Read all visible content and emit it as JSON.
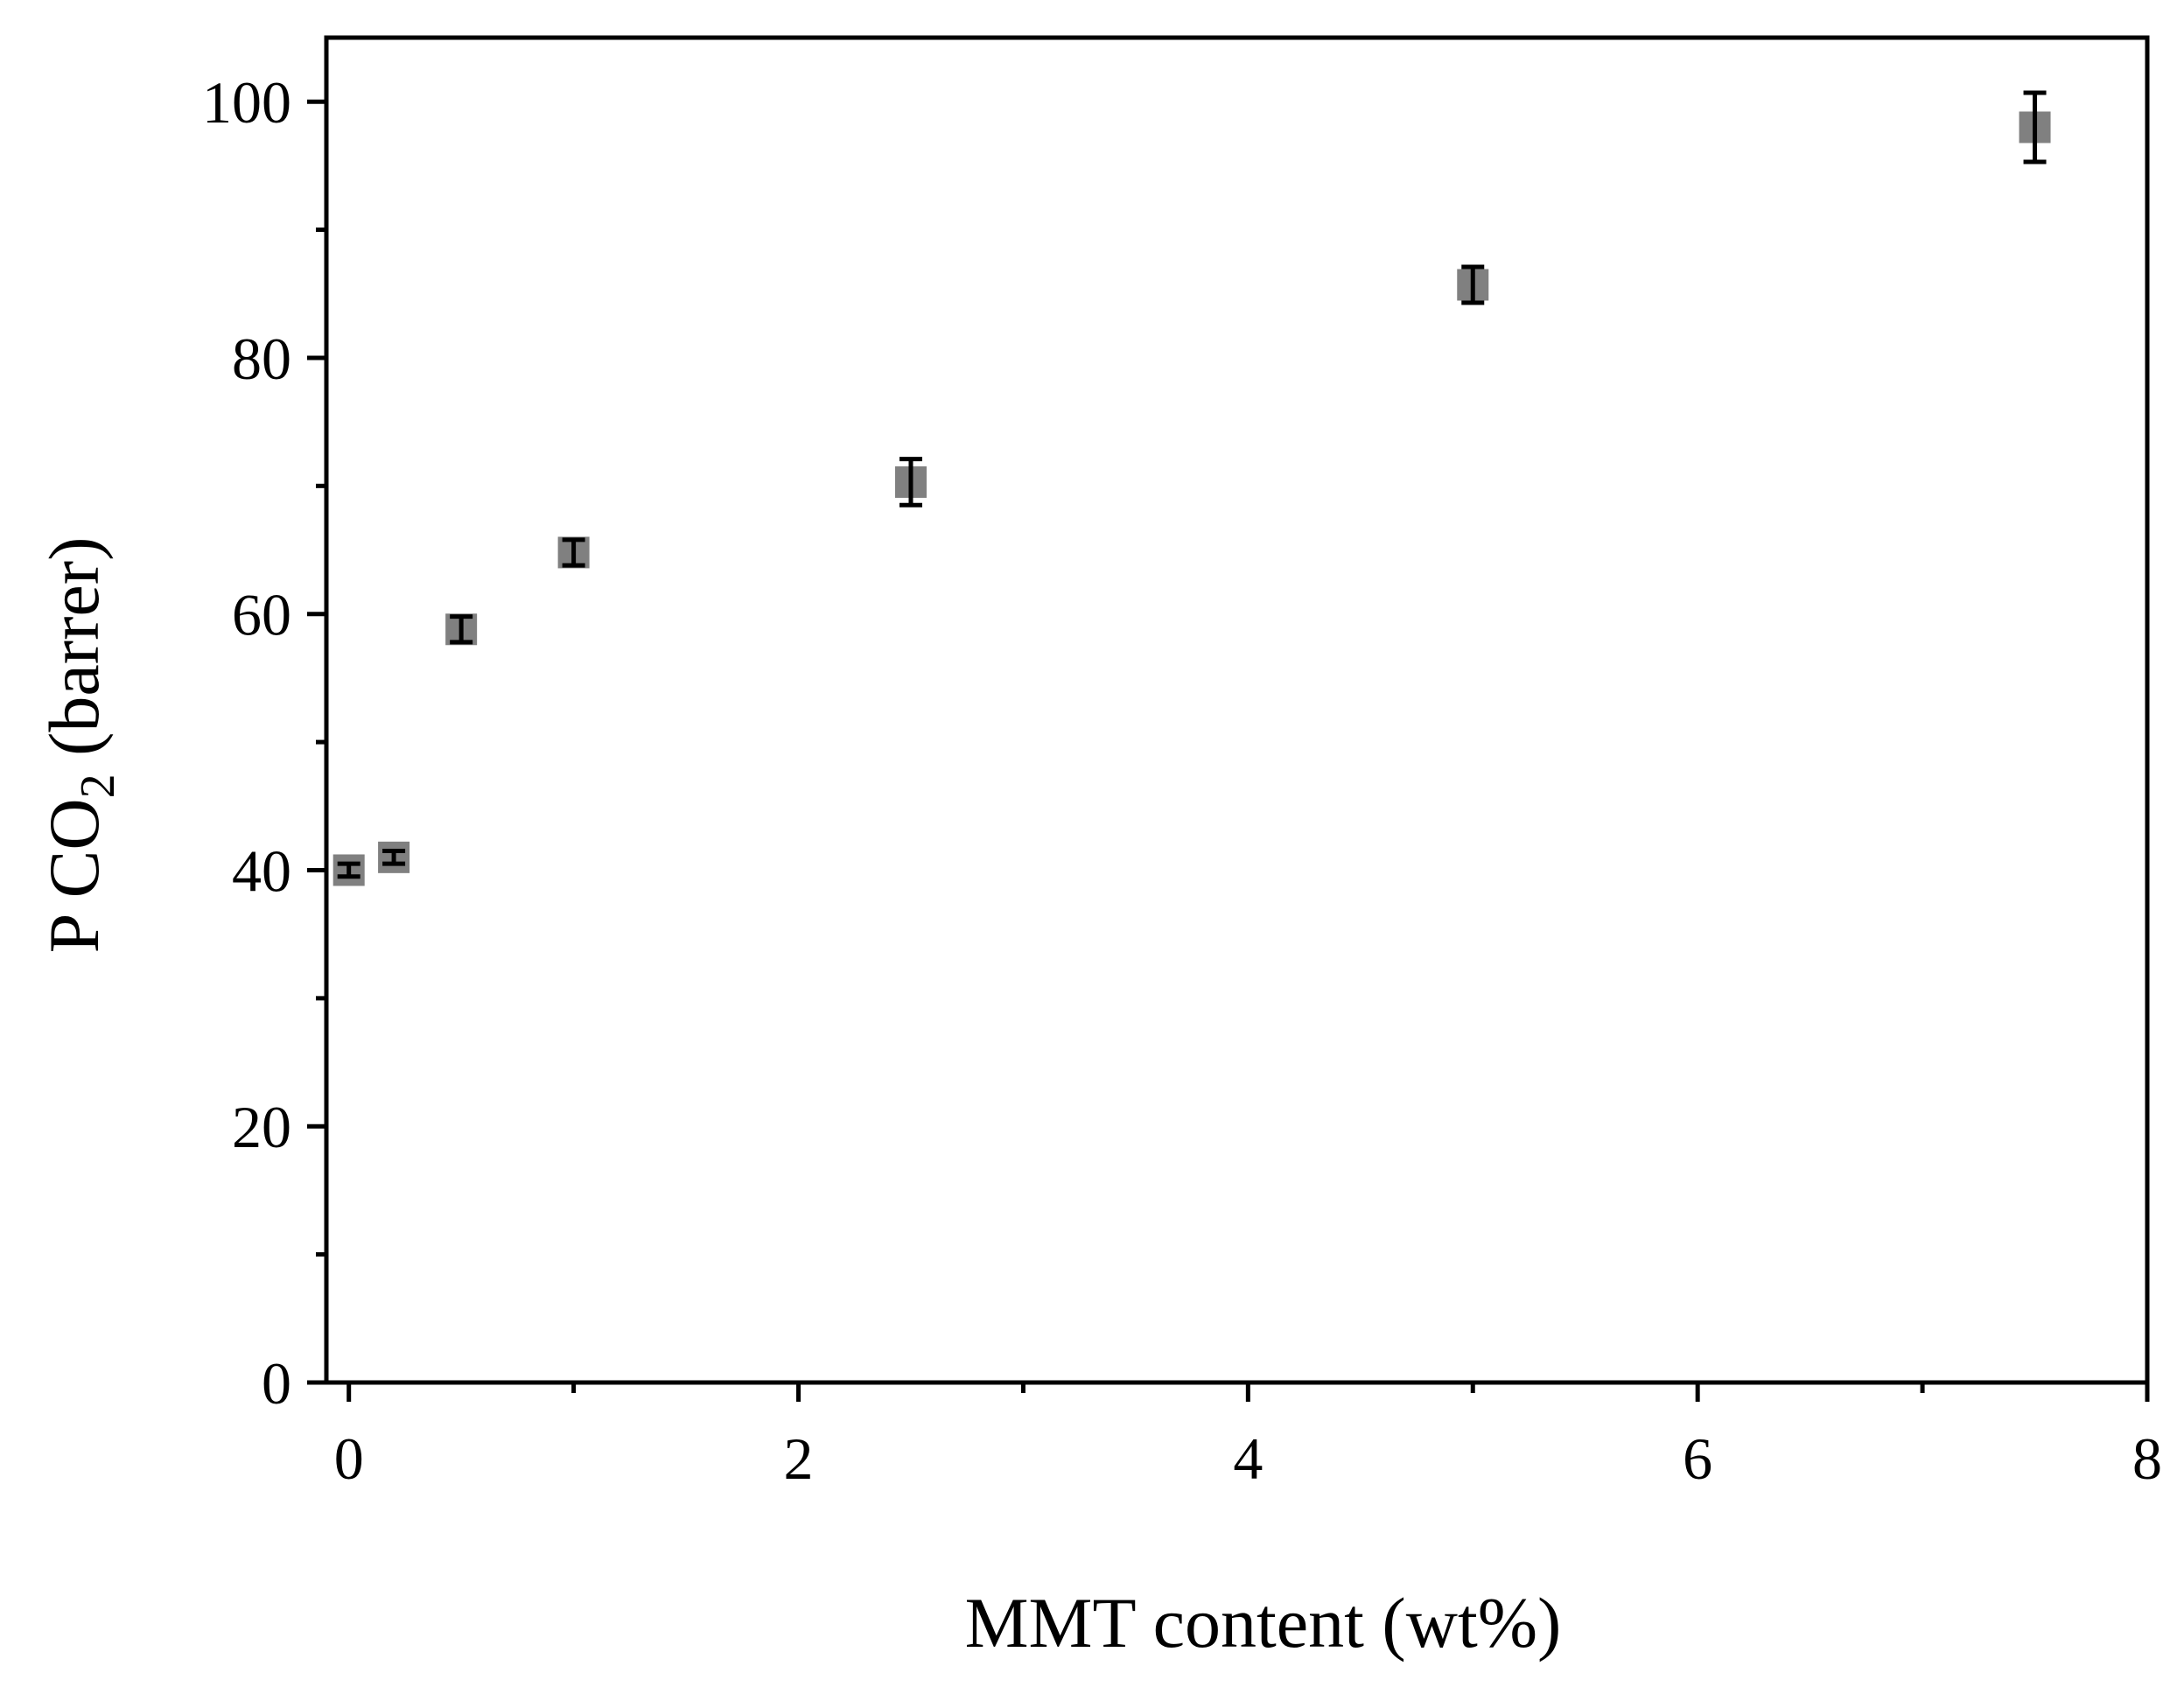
{
  "chart_data": {
    "type": "scatter",
    "title": "",
    "xlabel": "MMT content (wt%)",
    "ylabel": {
      "prefix": "P CO",
      "subscript": "2",
      "suffix": " (barrer)"
    },
    "xlim": [
      -0.1,
      8
    ],
    "ylim": [
      0,
      105
    ],
    "x_ticks": [
      0,
      2,
      4,
      6,
      8
    ],
    "y_ticks": [
      0,
      20,
      40,
      60,
      80,
      100
    ],
    "x_minor_ticks": [
      1,
      3,
      5,
      7
    ],
    "y_minor_ticks": [
      10,
      30,
      50,
      70,
      90
    ],
    "grid": false,
    "legend": false,
    "marker": "square",
    "marker_color": "#808080",
    "error_bar_color": "#000000",
    "points": [
      {
        "x": 0,
        "y": 40.0,
        "err": 0.5
      },
      {
        "x": 0.2,
        "y": 41.0,
        "err": 0.5
      },
      {
        "x": 0.5,
        "y": 58.8,
        "err": 1.0
      },
      {
        "x": 1.0,
        "y": 64.8,
        "err": 1.0
      },
      {
        "x": 2.5,
        "y": 70.3,
        "err": 1.8
      },
      {
        "x": 5.0,
        "y": 85.7,
        "err": 1.4
      },
      {
        "x": 7.5,
        "y": 98.0,
        "err": 2.7
      }
    ]
  }
}
